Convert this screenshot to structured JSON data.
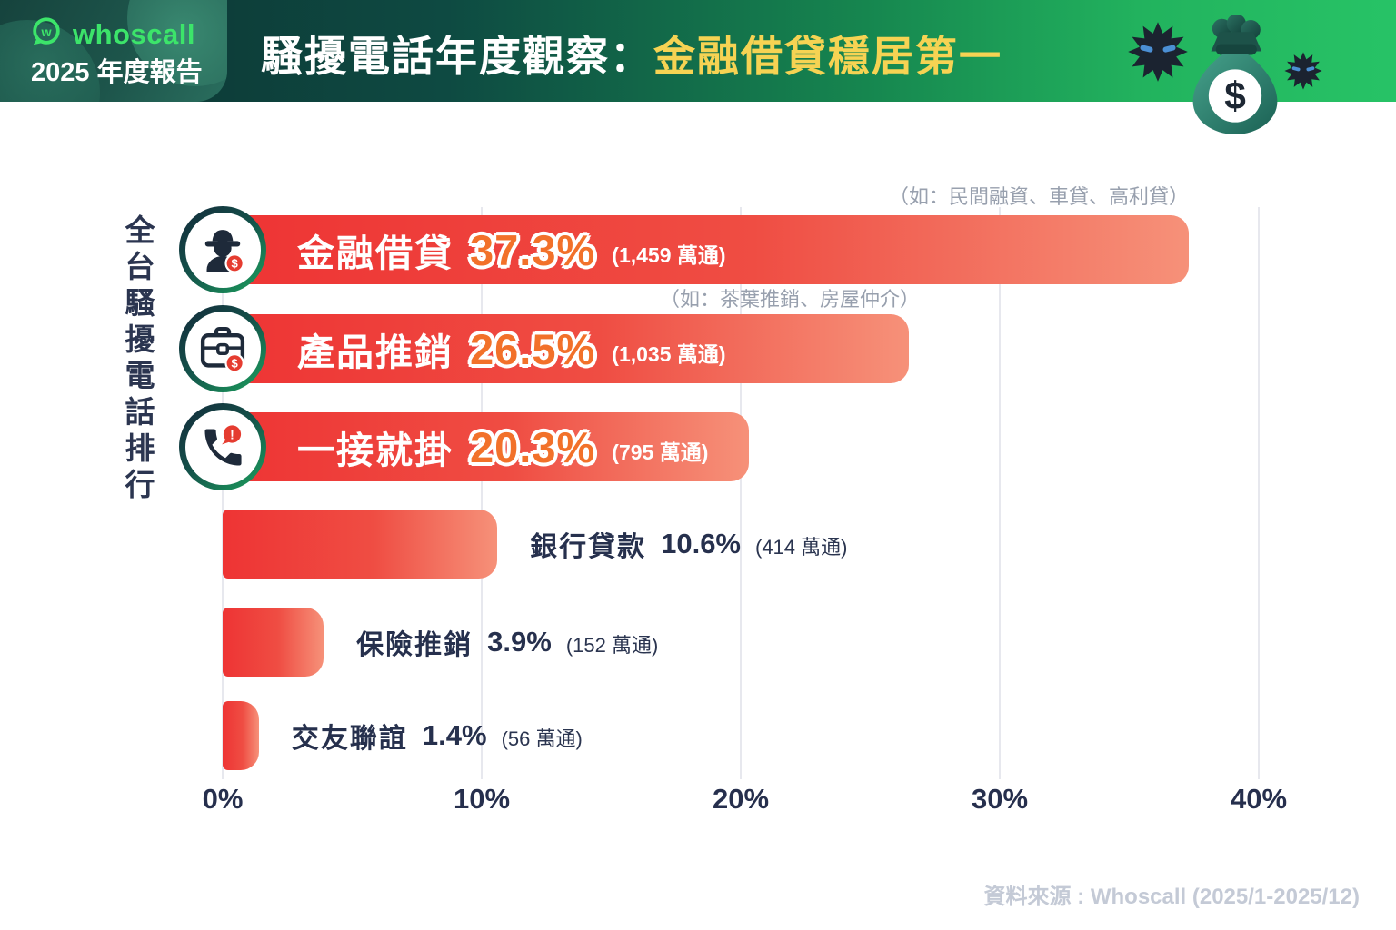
{
  "header": {
    "brand": "whoscall",
    "report_label": "2025 年度報告",
    "title_prefix": "騷擾電話年度觀察：",
    "title_highlight": "金融借貸穩居第一",
    "colors": {
      "title_highlight": "#f6d353",
      "gradient_start": "#0c3231",
      "gradient_end": "#27c366",
      "brand_green": "#3ce46a"
    },
    "decor_icons": [
      "virus-icon",
      "money-bag-icon",
      "virus-icon"
    ]
  },
  "chart": {
    "y_axis_label": "全台騷擾電話排行",
    "source": "資料來源 : Whoscall (2025/1-2025/12)"
  },
  "chart_data": {
    "type": "bar",
    "orientation": "horizontal",
    "title": "全台騷擾電話排行",
    "categories": [
      "金融借貸",
      "產品推銷",
      "一接就掛",
      "銀行貸款",
      "保險推銷",
      "交友聯誼"
    ],
    "values": [
      37.3,
      26.5,
      20.3,
      10.6,
      3.9,
      1.4
    ],
    "value_labels": [
      "37.3%",
      "26.5%",
      "20.3%",
      "10.6%",
      "3.9%",
      "1.4%"
    ],
    "counts": [
      "(1,459 萬通)",
      "(1,035 萬通)",
      "(795 萬通)",
      "(414 萬通)",
      "(152 萬通)",
      "(56 萬通)"
    ],
    "annotations": [
      "（如：民間融資、車貸、高利貸）",
      "（如：茶葉推銷、房屋仲介）"
    ],
    "x_ticks": [
      "0%",
      "10%",
      "20%",
      "30%",
      "40%"
    ],
    "xlim": [
      0,
      40
    ],
    "grid": "vertical",
    "legend": "none",
    "bar_icons": [
      "loan-shark-dollar-icon",
      "briefcase-dollar-icon",
      "phone-hangup-icon"
    ],
    "colors": {
      "bar_start": "#ee3434",
      "bar_end": "#f69179",
      "pct_orange": "#f2712a",
      "text_navy": "#26304d"
    }
  }
}
